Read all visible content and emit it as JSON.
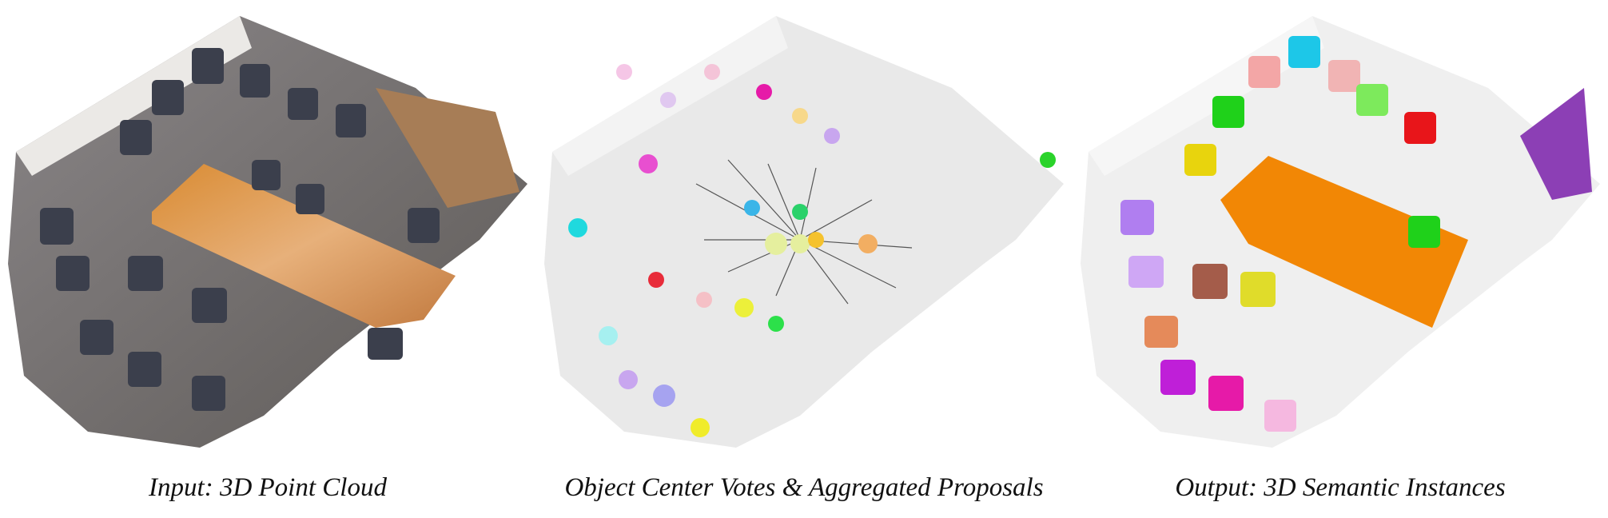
{
  "captions": {
    "input": "Input: 3D Point Cloud",
    "votes": "Object Center Votes & Aggregated Proposals",
    "output": "Output: 3D Semantic Instances"
  },
  "colors": {
    "floor": "#d6d6d6",
    "wall": "#ececec",
    "chair": "#3a3e4a",
    "table_wood": "#c9772e",
    "vote_line": "#555555",
    "table_instance": "#f28705"
  }
}
